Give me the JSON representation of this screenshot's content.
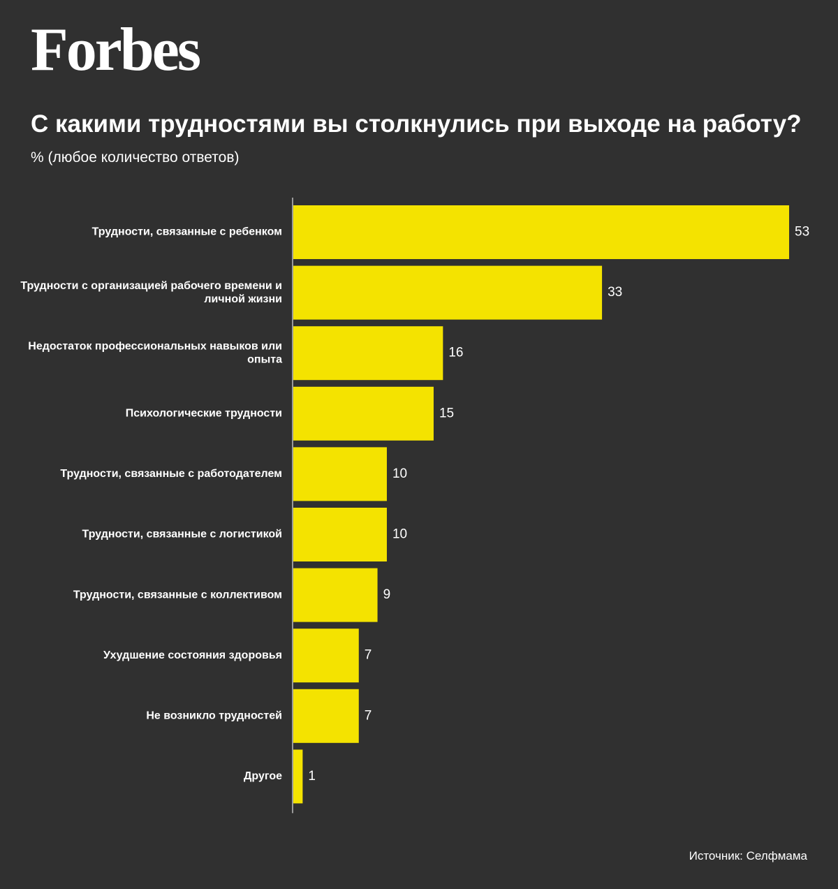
{
  "logo": "Forbes",
  "source": "Источник: Селфмама",
  "colors": {
    "background": "#303030",
    "bar": "#f4e300",
    "axis": "#9a9a9a",
    "text": "#ffffff"
  },
  "chart_data": {
    "type": "bar",
    "orientation": "horizontal",
    "title": "С какими трудностями вы столкнулись при выходе на работу?",
    "subtitle": "% (любое количество ответов)",
    "categories": [
      [
        "Трудности, связанные с ребенком"
      ],
      [
        "Трудности с организацией рабочего времени и",
        "личной жизни"
      ],
      [
        "Недостаток профессиональных навыков или",
        "опыта"
      ],
      [
        "Психологические трудности"
      ],
      [
        "Трудности, связанные с работодателем"
      ],
      [
        "Трудности, связанные с логистикой"
      ],
      [
        "Трудности, связанные с коллективом"
      ],
      [
        "Ухудшение состояния здоровья"
      ],
      [
        "Не возникло трудностей"
      ],
      [
        "Другое"
      ]
    ],
    "values": [
      53,
      33,
      16,
      15,
      10,
      10,
      9,
      7,
      7,
      1
    ],
    "value_labels": [
      "53",
      "33",
      "16",
      "15",
      "10",
      "10",
      "9",
      "7",
      "7",
      "1"
    ],
    "xlim": [
      0,
      53
    ],
    "grid": false,
    "legend": "none"
  }
}
